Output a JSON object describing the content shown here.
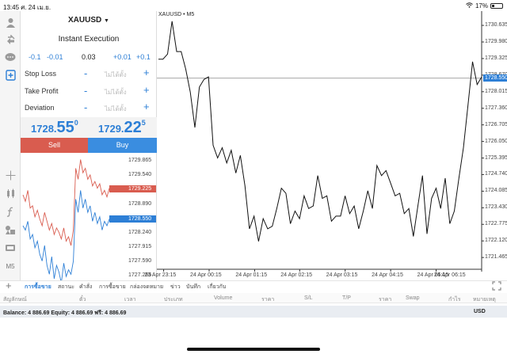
{
  "status": {
    "time": "13:45",
    "date": "ศ. 24 เม.ย.",
    "battery": "17%"
  },
  "toolbar": {
    "items": [
      {
        "name": "accounts-icon"
      },
      {
        "name": "trade-icon"
      },
      {
        "name": "chat-icon"
      },
      {
        "name": "new-order-icon"
      }
    ],
    "chart_tools": [
      {
        "name": "crosshair-icon"
      },
      {
        "name": "indicators-icon"
      },
      {
        "name": "function-icon"
      },
      {
        "name": "objects-icon"
      },
      {
        "name": "templates-icon"
      }
    ],
    "timeframe": "M5"
  },
  "order": {
    "symbol": "XAUUSD",
    "exec_mode": "Instant Execution",
    "volume": {
      "m01": "-0.1",
      "m001": "-0.01",
      "value": "0.03",
      "p001": "+0.01",
      "p01": "+0.1"
    },
    "fields": [
      {
        "label": "Stop Loss",
        "minus": "-",
        "value": "ไม่ได้ตั้ง",
        "plus": "+"
      },
      {
        "label": "Take Profit",
        "minus": "-",
        "value": "ไม่ได้ตั้ง",
        "plus": "+"
      },
      {
        "label": "Deviation",
        "minus": "-",
        "value": "ไม่ได้ตั้ง",
        "plus": "+"
      }
    ],
    "bid": {
      "small": "1728.",
      "big": "55",
      "sup": "0"
    },
    "ask": {
      "small": "1729.",
      "big": "22",
      "sup": "5"
    },
    "sell_label": "Sell",
    "buy_label": "Buy",
    "tick_axis": [
      "1729.865",
      "1729.540",
      "1729.225",
      "1728.890",
      "1728.550",
      "1728.240",
      "1727.915",
      "1727.590",
      "1727.265"
    ],
    "ask_tag": "1729.225",
    "bid_tag": "1728.550",
    "ask_color": "#d95c4f",
    "bid_color": "#2d7fd6"
  },
  "chart": {
    "title": "XAUUSD • M5",
    "current_price": "1728.550",
    "y_ticks": [
      "1730.635",
      "1729.980",
      "1729.325",
      "1728.670",
      "1728.015",
      "1727.360",
      "1726.705",
      "1726.050",
      "1725.395",
      "1724.740",
      "1724.085",
      "1723.430",
      "1722.775",
      "1722.120",
      "1721.465"
    ],
    "x_ticks": [
      "23 Apr 23:15",
      "24 Apr 00:15",
      "24 Apr 01:15",
      "24 Apr 02:15",
      "24 Apr 03:15",
      "24 Apr 04:15",
      "24 Apr 05:15",
      "24 Apr 06:15"
    ]
  },
  "chart_data": {
    "type": "line",
    "ylim": [
      1721.0,
      1731.2
    ],
    "y_ticks": [
      1730.635,
      1729.98,
      1729.325,
      1728.67,
      1728.015,
      1727.36,
      1726.705,
      1726.05,
      1725.395,
      1724.74,
      1724.085,
      1723.43,
      1722.775,
      1722.12,
      1721.465
    ],
    "x_labels": [
      "23 Apr 23:15",
      "24 Apr 00:15",
      "24 Apr 01:15",
      "24 Apr 02:15",
      "24 Apr 03:15",
      "24 Apr 04:15",
      "24 Apr 05:15",
      "24 Apr 06:15"
    ],
    "values": [
      1729.3,
      1729.3,
      1729.5,
      1730.8,
      1729.6,
      1729.6,
      1728.9,
      1728.0,
      1726.6,
      1728.2,
      1728.5,
      1728.6,
      1725.9,
      1725.4,
      1725.8,
      1725.2,
      1725.7,
      1724.8,
      1725.5,
      1724.3,
      1722.6,
      1723.1,
      1722.1,
      1723.0,
      1722.6,
      1722.7,
      1723.4,
      1724.2,
      1724.0,
      1722.8,
      1723.3,
      1723.0,
      1723.9,
      1723.4,
      1723.5,
      1724.7,
      1723.8,
      1723.9,
      1722.9,
      1723.1,
      1723.1,
      1723.9,
      1723.2,
      1723.5,
      1722.6,
      1723.3,
      1724.1,
      1723.4,
      1725.1,
      1724.7,
      1724.9,
      1724.4,
      1723.9,
      1724.0,
      1723.2,
      1723.4,
      1722.3,
      1723.5,
      1724.7,
      1722.4,
      1723.8,
      1724.2,
      1723.4,
      1724.6,
      1722.8,
      1723.3,
      1724.6,
      1725.8,
      1727.5,
      1729.2,
      1728.3,
      1728.6
    ],
    "last_price": 1728.55,
    "line_color": "#111111",
    "price_line_color": "#9a9a9a"
  },
  "tick_data": {
    "ylim": [
      1727.0,
      1730.05
    ],
    "ask": [
      1729.1,
      1728.95,
      1729.2,
      1728.8,
      1728.85,
      1728.6,
      1728.75,
      1728.55,
      1728.4,
      1728.7,
      1728.5,
      1728.3,
      1728.45,
      1728.2,
      1728.35,
      1728.25,
      1728.1,
      1728.35,
      1728.05,
      1728.15,
      1727.95,
      1728.3,
      1729.7,
      1729.45,
      1729.9,
      1729.6,
      1729.7,
      1729.45,
      1729.55,
      1729.3,
      1729.4,
      1729.25,
      1729.35,
      1729.1,
      1729.2,
      1729.05,
      1729.25
    ],
    "bid": [
      1728.4,
      1728.3,
      1728.5,
      1728.1,
      1728.2,
      1727.9,
      1728.05,
      1727.75,
      1727.6,
      1727.95,
      1727.5,
      1727.3,
      1727.7,
      1727.2,
      1727.5,
      1727.35,
      1727.1,
      1727.55,
      1727.25,
      1727.4,
      1727.3,
      1727.6,
      1729.0,
      1728.7,
      1729.2,
      1728.8,
      1729.0,
      1728.7,
      1728.85,
      1728.5,
      1728.7,
      1728.45,
      1728.6,
      1728.3,
      1728.5,
      1728.4,
      1728.55
    ]
  },
  "tabs": [
    {
      "label": "การซื้อขาย",
      "active": true
    },
    {
      "label": "สถานะ"
    },
    {
      "label": "คำสั่ง"
    },
    {
      "label": "การซื้อขาย"
    },
    {
      "label": "กล่องจดหมาย"
    },
    {
      "label": "ข่าว"
    },
    {
      "label": "บันทึก"
    },
    {
      "label": "เกี่ยวกับ"
    }
  ],
  "columns": [
    "สัญลักษณ์",
    "ตั๋ว",
    "เวลา",
    "ประเภท",
    "Volume",
    "ราคา",
    "S/L",
    "T/P",
    "ราคา",
    "Swap",
    "กำไร",
    "หมายเหตุ"
  ],
  "balance": {
    "text": "Balance: 4 886.69 Equity: 4 886.69 ฟรี: 4 886.69",
    "currency": "USD"
  }
}
